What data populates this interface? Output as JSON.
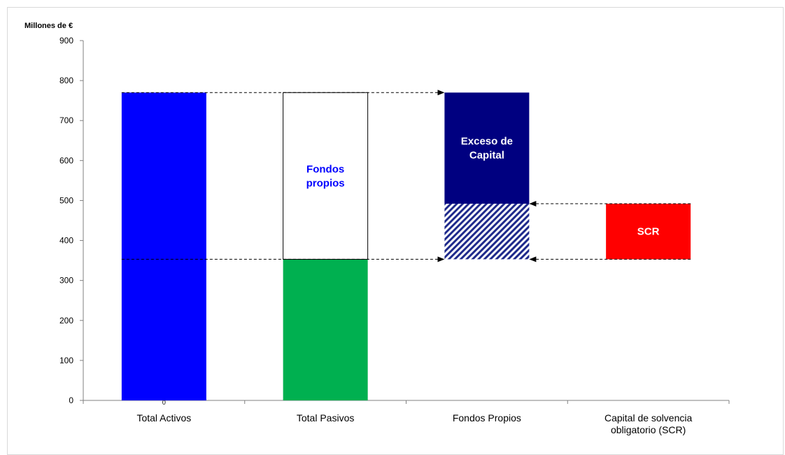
{
  "chart_data": {
    "type": "bar",
    "unit_label": "Millones de €",
    "ylim": [
      0,
      900
    ],
    "yticks": [
      0,
      100,
      200,
      300,
      400,
      500,
      600,
      700,
      800,
      900
    ],
    "categories": [
      "Total Activos",
      "Total Pasivos",
      "Fondos Propios",
      "Capital de solvencia obligatorio (SCR)"
    ],
    "category_label_lines": [
      [
        "Total Activos"
      ],
      [
        "Total Pasivos"
      ],
      [
        "Fondos Propios"
      ],
      [
        "Capital de solvencia",
        "obligatorio (SCR)"
      ]
    ],
    "segments": [
      {
        "category": 0,
        "start": 0,
        "end": 770,
        "fill": "#0000ff",
        "label_lines": []
      },
      {
        "category": 1,
        "start": 0,
        "end": 353,
        "fill": "#00b050",
        "label_lines": []
      },
      {
        "category": 1,
        "start": 353,
        "end": 770,
        "fill": "#ffffff",
        "label_lines": [
          "Fondos",
          "propios"
        ],
        "label_color": "#0000ff"
      },
      {
        "category": 2,
        "start": 353,
        "end": 492,
        "fill": "hatch",
        "label_lines": []
      },
      {
        "category": 2,
        "start": 492,
        "end": 770,
        "fill": "#000080",
        "label_lines": [
          "Exceso de",
          "Capital"
        ],
        "label_color": "#ffffff"
      },
      {
        "category": 3,
        "start": 353,
        "end": 492,
        "fill": "#ff0000",
        "label_lines": [
          "SCR"
        ],
        "label_color": "#ffffff"
      }
    ],
    "connectors": [
      {
        "value": 770,
        "from_category": 0,
        "to_category": 2
      },
      {
        "value": 353,
        "from_category": 0,
        "to_category": 2
      },
      {
        "value": 492,
        "from_category": 3,
        "to_category": 2
      },
      {
        "value": 353,
        "from_category": 3,
        "to_category": 2
      }
    ],
    "colors": {
      "activos": "#0000ff",
      "pasivos": "#00b050",
      "exceso": "#000080",
      "hatch": "#1f2a8c",
      "scr": "#ff0000"
    },
    "grid": false,
    "x_origin_label": "0"
  }
}
